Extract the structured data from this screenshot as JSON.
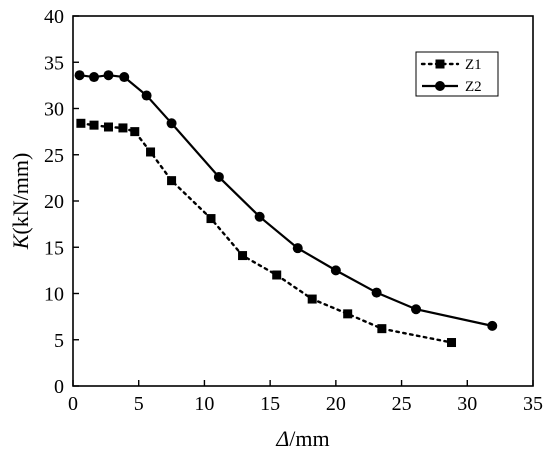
{
  "chart_data": {
    "type": "line",
    "title": "",
    "xlabel": {
      "symbol": "Δ",
      "unit": "/mm"
    },
    "ylabel": {
      "symbol": "K",
      "unit": "(kN/mm)"
    },
    "xlim": [
      0,
      35
    ],
    "ylim": [
      0,
      40
    ],
    "xticks": [
      0,
      5,
      10,
      15,
      20,
      25,
      30,
      35
    ],
    "yticks": [
      0,
      5,
      10,
      15,
      20,
      25,
      30,
      35,
      40
    ],
    "grid": false,
    "legend_position": "top-right",
    "series": [
      {
        "name": "Z1",
        "marker": "square",
        "line_style": "dotted",
        "color": "#000000",
        "x": [
          0.6,
          1.6,
          2.7,
          3.8,
          4.7,
          5.9,
          7.5,
          10.5,
          12.9,
          15.5,
          18.2,
          20.9,
          23.5,
          28.8
        ],
        "y": [
          28.4,
          28.2,
          28.0,
          27.9,
          27.5,
          25.3,
          22.2,
          18.1,
          14.1,
          12.0,
          9.4,
          7.8,
          6.2,
          4.7
        ]
      },
      {
        "name": "Z2",
        "marker": "circle",
        "line_style": "solid",
        "color": "#000000",
        "x": [
          0.5,
          1.6,
          2.7,
          3.9,
          5.6,
          7.5,
          11.1,
          14.2,
          17.1,
          20.0,
          23.1,
          26.1,
          31.9
        ],
        "y": [
          33.6,
          33.4,
          33.6,
          33.4,
          31.4,
          28.4,
          22.6,
          18.3,
          14.9,
          12.5,
          10.1,
          8.3,
          6.5
        ]
      }
    ]
  }
}
